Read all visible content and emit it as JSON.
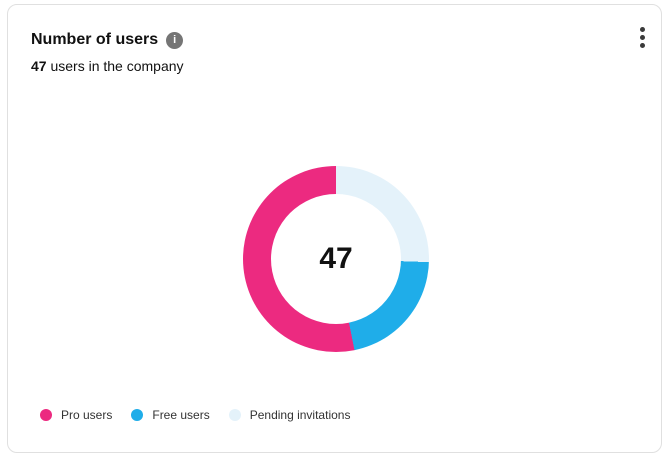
{
  "card": {
    "title": "Number of users",
    "subtitle_value": "47",
    "subtitle_text": " users in the company"
  },
  "chart_data": {
    "type": "pie",
    "donut": true,
    "title": "Number of users",
    "center_label": "47",
    "total": 47,
    "series": [
      {
        "name": "Pro users",
        "value": 25,
        "color": "#ec2a80"
      },
      {
        "name": "Free users",
        "value": 10,
        "color": "#1fade9"
      },
      {
        "name": "Pending invitations",
        "value": 12,
        "color": "#e4f2fa"
      }
    ],
    "draw_order_clockwise_from_top": [
      "Pending invitations",
      "Free users",
      "Pro users"
    ],
    "legend_position": "bottom-left"
  }
}
